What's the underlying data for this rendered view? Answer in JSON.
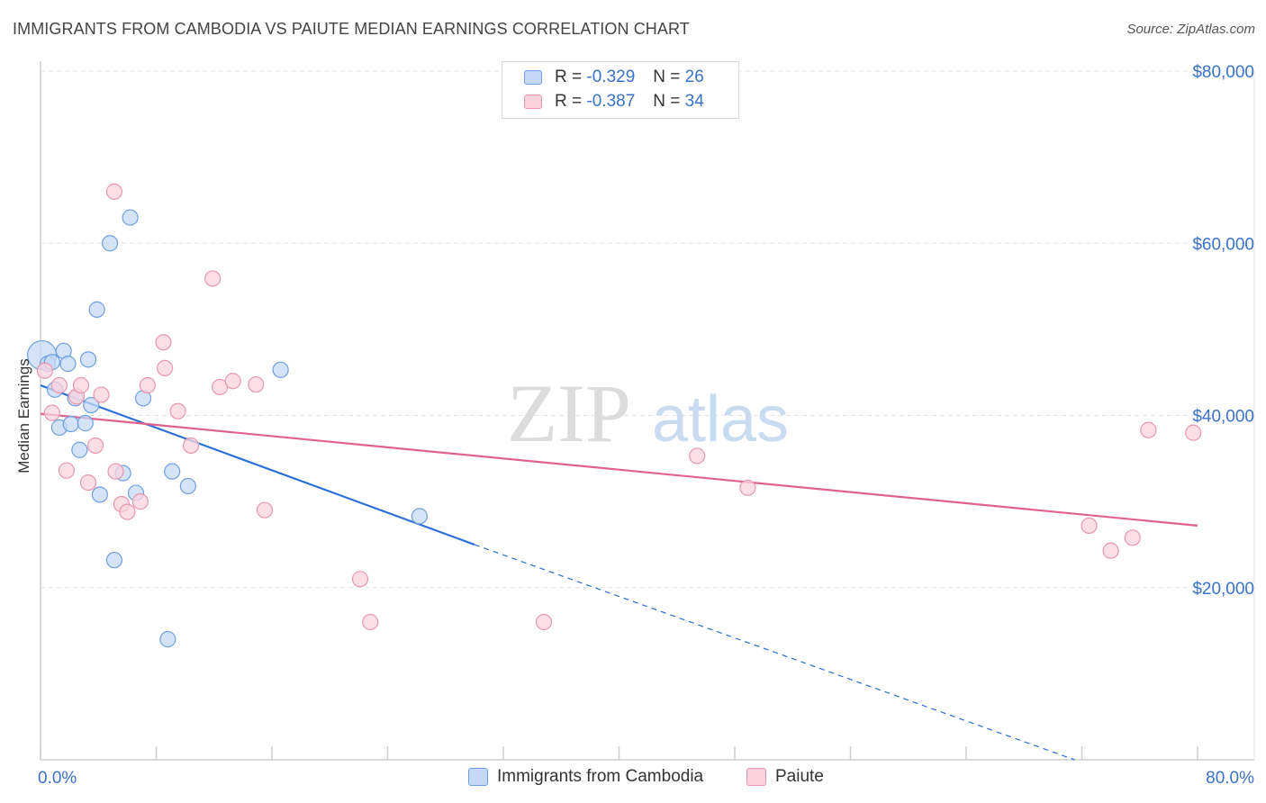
{
  "title": "IMMIGRANTS FROM CAMBODIA VS PAIUTE MEDIAN EARNINGS CORRELATION CHART",
  "source": "Source: ZipAtlas.com",
  "watermark": {
    "zip": "ZIP",
    "atlas": "atlas"
  },
  "legend": {
    "rows": [
      {
        "r_label": "R =",
        "r_value": "-0.329",
        "n_label": "N =",
        "n_value": "26",
        "color": "#a9c6f0",
        "border": "#6f9fe0"
      },
      {
        "r_label": "R =",
        "r_value": "-0.387",
        "n_label": "N =",
        "n_value": "34",
        "color": "#f7c0d1",
        "border": "#e897b1"
      }
    ]
  },
  "bottom_legend": [
    {
      "label": "Immigrants from Cambodia",
      "color": "#c5d9f6",
      "border": "#6f9fe0"
    },
    {
      "label": "Paiute",
      "color": "#fbd3df",
      "border": "#e897b1"
    }
  ],
  "chart_data": {
    "type": "scatter",
    "title": "IMMIGRANTS FROM CAMBODIA VS PAIUTE MEDIAN EARNINGS CORRELATION CHART",
    "xlabel": "",
    "ylabel": "Median Earnings",
    "xlim": [
      0,
      80
    ],
    "ylim": [
      0,
      82000
    ],
    "x_tick_labels": [
      "0.0%",
      "80.0%"
    ],
    "y_ticks": [
      20000,
      40000,
      60000,
      80000
    ],
    "y_tick_labels": [
      "$20,000",
      "$40,000",
      "$60,000",
      "$80,000"
    ],
    "grid": true,
    "series": [
      {
        "name": "Immigrants from Cambodia",
        "color": "#6f9fe0",
        "fill": "#c5d9f6",
        "line_color": "#2a6fd6",
        "trend": {
          "x0": 0,
          "y0": 43500,
          "x1": 30,
          "y1": 25000,
          "dash_to_x": 71.5,
          "dash_to_y": 0
        },
        "points": [
          {
            "x": 0.1,
            "y": 47000,
            "big": true
          },
          {
            "x": 0.5,
            "y": 46000
          },
          {
            "x": 0.8,
            "y": 46200
          },
          {
            "x": 1.0,
            "y": 43000
          },
          {
            "x": 1.3,
            "y": 38600
          },
          {
            "x": 1.6,
            "y": 47500
          },
          {
            "x": 1.9,
            "y": 46000
          },
          {
            "x": 2.1,
            "y": 39000
          },
          {
            "x": 2.4,
            "y": 42000
          },
          {
            "x": 2.7,
            "y": 36000
          },
          {
            "x": 3.1,
            "y": 39100
          },
          {
            "x": 3.3,
            "y": 46500
          },
          {
            "x": 3.5,
            "y": 41200
          },
          {
            "x": 4.1,
            "y": 30800
          },
          {
            "x": 3.9,
            "y": 52300
          },
          {
            "x": 4.8,
            "y": 60000
          },
          {
            "x": 5.1,
            "y": 23200
          },
          {
            "x": 5.7,
            "y": 33300
          },
          {
            "x": 6.2,
            "y": 63000
          },
          {
            "x": 6.6,
            "y": 31000
          },
          {
            "x": 7.1,
            "y": 42000
          },
          {
            "x": 8.8,
            "y": 14000
          },
          {
            "x": 9.1,
            "y": 33500
          },
          {
            "x": 10.2,
            "y": 31800
          },
          {
            "x": 16.6,
            "y": 45300
          },
          {
            "x": 26.2,
            "y": 28300
          }
        ]
      },
      {
        "name": "Paiute",
        "color": "#e897b1",
        "fill": "#fbd3df",
        "line_color": "#e0628c",
        "trend": {
          "x0": 0,
          "y0": 40200,
          "x1": 80,
          "y1": 27200
        },
        "points": [
          {
            "x": 0.3,
            "y": 45200
          },
          {
            "x": 0.8,
            "y": 40300
          },
          {
            "x": 1.3,
            "y": 43500
          },
          {
            "x": 1.8,
            "y": 33600
          },
          {
            "x": 2.5,
            "y": 42200
          },
          {
            "x": 2.8,
            "y": 43500
          },
          {
            "x": 3.3,
            "y": 32200
          },
          {
            "x": 3.8,
            "y": 36500
          },
          {
            "x": 4.2,
            "y": 42400
          },
          {
            "x": 5.1,
            "y": 66000
          },
          {
            "x": 5.2,
            "y": 33500
          },
          {
            "x": 5.6,
            "y": 29700
          },
          {
            "x": 6.0,
            "y": 28800
          },
          {
            "x": 6.9,
            "y": 30000
          },
          {
            "x": 7.4,
            "y": 43500
          },
          {
            "x": 8.5,
            "y": 48500
          },
          {
            "x": 8.6,
            "y": 45500
          },
          {
            "x": 9.5,
            "y": 40500
          },
          {
            "x": 10.4,
            "y": 36500
          },
          {
            "x": 11.9,
            "y": 55900
          },
          {
            "x": 12.4,
            "y": 43300
          },
          {
            "x": 13.3,
            "y": 44000
          },
          {
            "x": 14.9,
            "y": 43600
          },
          {
            "x": 15.5,
            "y": 29000
          },
          {
            "x": 22.1,
            "y": 21000
          },
          {
            "x": 22.8,
            "y": 16000
          },
          {
            "x": 34.8,
            "y": 16000
          },
          {
            "x": 45.4,
            "y": 35300
          },
          {
            "x": 48.9,
            "y": 31600
          },
          {
            "x": 72.5,
            "y": 27200
          },
          {
            "x": 74.0,
            "y": 24300
          },
          {
            "x": 75.5,
            "y": 25800
          },
          {
            "x": 76.6,
            "y": 38300
          },
          {
            "x": 79.7,
            "y": 38000
          }
        ]
      }
    ]
  }
}
